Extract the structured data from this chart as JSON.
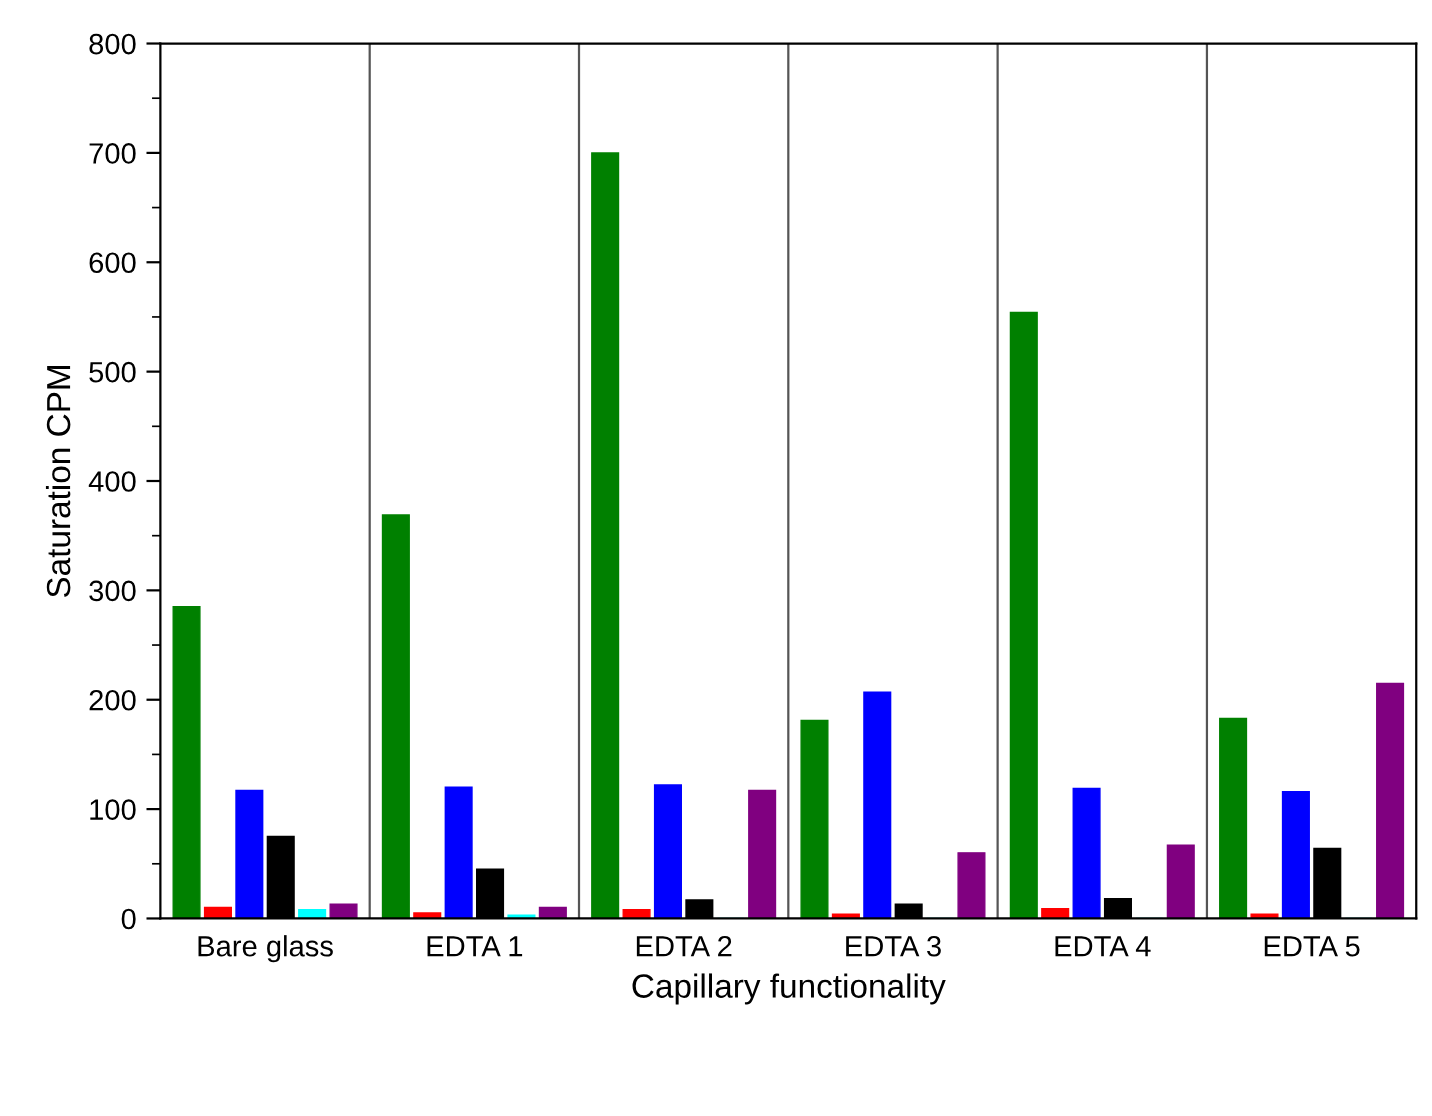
{
  "chart_data": {
    "type": "bar",
    "xlabel": "Capillary functionality",
    "ylabel": "Saturation CPM",
    "categories": [
      "Bare glass",
      "EDTA 1",
      "EDTA 2",
      "EDTA 3",
      "EDTA 4",
      "EDTA 5"
    ],
    "series": [
      {
        "color": "#008000",
        "values": [
          285,
          369,
          700,
          181,
          554,
          183
        ]
      },
      {
        "color": "#ff0000",
        "values": [
          10,
          5,
          8,
          4,
          9,
          4
        ]
      },
      {
        "color": "#0000ff",
        "values": [
          117,
          120,
          122,
          207,
          119,
          116
        ]
      },
      {
        "color": "#000000",
        "values": [
          75,
          45,
          17,
          13,
          18,
          64
        ]
      },
      {
        "color": "#00ffff",
        "values": [
          8,
          3,
          null,
          null,
          null,
          null
        ]
      },
      {
        "color": "#800080",
        "values": [
          13,
          10,
          117,
          60,
          67,
          215
        ]
      }
    ],
    "ylim": [
      0,
      800
    ],
    "yticks": [
      0,
      100,
      200,
      300,
      400,
      500,
      600,
      700,
      800
    ],
    "grid": false
  }
}
